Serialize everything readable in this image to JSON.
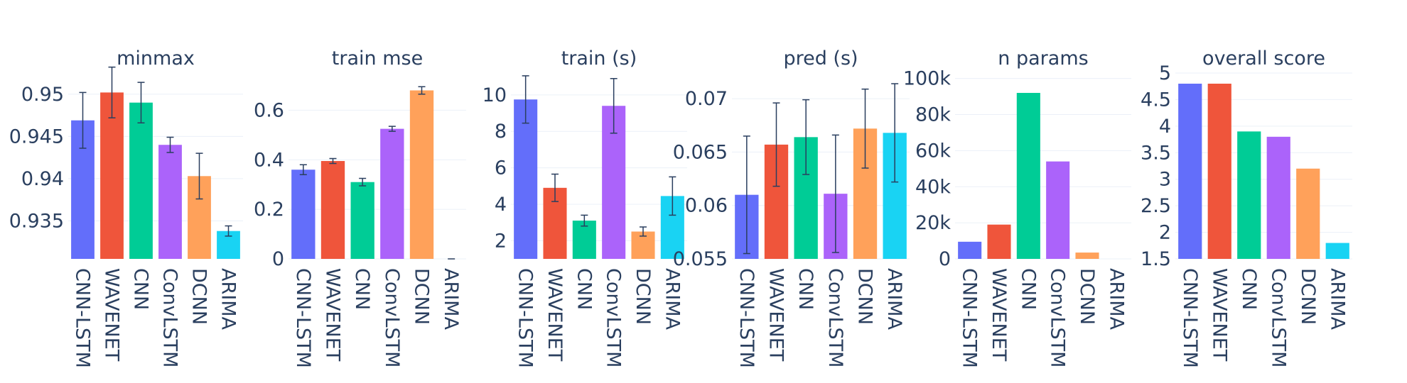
{
  "colors": {
    "CNN-LSTM": "#636efa",
    "WAVENET": "#ef553b",
    "CNN": "#00cc96",
    "ConvLSTM": "#ab63fa",
    "DCNN": "#ffa15a",
    "ARIMA": "#19d3f3"
  },
  "chart_data": [
    {
      "type": "bar",
      "title": "minmax",
      "categories": [
        "CNN-LSTM",
        "WAVENET",
        "CNN",
        "ConvLSTM",
        "DCNN",
        "ARIMA"
      ],
      "values": [
        0.9469,
        0.9502,
        0.949,
        0.944,
        0.9403,
        0.9338
      ],
      "error": [
        0.0033,
        0.003,
        0.0024,
        0.0009,
        0.0027,
        0.0006
      ],
      "ylim": [
        0.9305,
        0.9525
      ],
      "yticks": [
        0.935,
        0.94,
        0.945,
        0.95
      ],
      "ytick_labels": [
        "0.935",
        "0.94",
        "0.945",
        "0.95"
      ],
      "grid": true
    },
    {
      "type": "bar",
      "title": "train mse",
      "categories": [
        "CNN-LSTM",
        "WAVENET",
        "CNN",
        "ConvLSTM",
        "DCNN",
        "ARIMA"
      ],
      "values": [
        0.36,
        0.395,
        0.31,
        0.525,
        0.68,
        0.0
      ],
      "error": [
        0.02,
        0.01,
        0.015,
        0.01,
        0.015,
        0.0
      ],
      "ylim": [
        0,
        0.75
      ],
      "yticks": [
        0,
        0.2,
        0.4,
        0.6
      ],
      "ytick_labels": [
        "0",
        "0.2",
        "0.4",
        "0.6"
      ],
      "grid": true
    },
    {
      "type": "bar",
      "title": "train (s)",
      "categories": [
        "CNN-LSTM",
        "WAVENET",
        "CNN",
        "ConvLSTM",
        "DCNN",
        "ARIMA"
      ],
      "values": [
        9.75,
        4.9,
        3.1,
        9.4,
        2.5,
        4.45
      ],
      "error": [
        1.3,
        0.75,
        0.3,
        1.5,
        0.25,
        1.05
      ],
      "ylim": [
        1,
        11.2
      ],
      "yticks": [
        2,
        4,
        6,
        8,
        10
      ],
      "ytick_labels": [
        "2",
        "4",
        "6",
        "8",
        "10"
      ],
      "grid": true
    },
    {
      "type": "bar",
      "title": "pred (s)",
      "categories": [
        "CNN-LSTM",
        "WAVENET",
        "CNN",
        "ConvLSTM",
        "DCNN",
        "ARIMA"
      ],
      "values": [
        0.061,
        0.0657,
        0.0664,
        0.0611,
        0.0672,
        0.0668
      ],
      "error": [
        0.0055,
        0.0039,
        0.0035,
        0.0055,
        0.0037,
        0.0046
      ],
      "ylim": [
        0.055,
        0.0724
      ],
      "yticks": [
        0.055,
        0.06,
        0.065,
        0.07
      ],
      "ytick_labels": [
        "0.055",
        "0.06",
        "0.065",
        "0.07"
      ],
      "grid": true
    },
    {
      "type": "bar",
      "title": "n params",
      "categories": [
        "CNN-LSTM",
        "WAVENET",
        "CNN",
        "ConvLSTM",
        "DCNN",
        "ARIMA"
      ],
      "values": [
        9500,
        19000,
        92000,
        54000,
        3500,
        0
      ],
      "ylim": [
        0,
        103000
      ],
      "yticks": [
        0,
        20000,
        40000,
        60000,
        80000,
        100000
      ],
      "ytick_labels": [
        "0",
        "20k",
        "40k",
        "60k",
        "80k",
        "100k"
      ],
      "grid": true
    },
    {
      "type": "bar",
      "title": "overall score",
      "categories": [
        "CNN-LSTM",
        "WAVENET",
        "CNN",
        "ConvLSTM",
        "DCNN",
        "ARIMA"
      ],
      "values": [
        4.8,
        4.8,
        3.9,
        3.8,
        3.2,
        1.8
      ],
      "ylim": [
        1.5,
        5.0
      ],
      "yticks": [
        1.5,
        2,
        2.5,
        3,
        3.5,
        4,
        4.5,
        5
      ],
      "ytick_labels": [
        "1.5",
        "2",
        "2.5",
        "3",
        "3.5",
        "4",
        "4.5",
        "5"
      ],
      "grid": true
    }
  ]
}
